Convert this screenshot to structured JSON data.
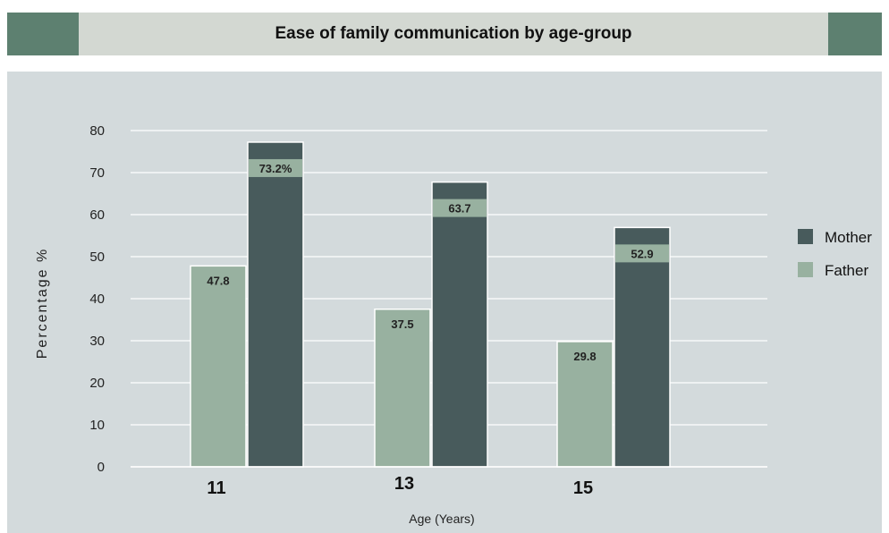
{
  "title": "Ease of family communication by age-group",
  "chart_data": {
    "type": "bar",
    "categories": [
      "11",
      "13",
      "15"
    ],
    "series": [
      {
        "name": "Father",
        "values": [
          47.8,
          37.5,
          29.8
        ],
        "labels": [
          "47.8",
          "37.5",
          "29.8"
        ],
        "color": "#98b1a0"
      },
      {
        "name": "Mother",
        "values": [
          73.2,
          63.7,
          52.9
        ],
        "labels": [
          "73.2%",
          "63.7",
          "52.9"
        ],
        "color": "#485b5c"
      }
    ],
    "xlabel": "Age (Years)",
    "ylabel": "Percentage %",
    "ylim": [
      0,
      80
    ],
    "yticks": [
      0,
      10,
      20,
      30,
      40,
      50,
      60,
      70,
      80
    ],
    "grid": true,
    "legend": "right",
    "label_box_color": "#98b1a0",
    "grid_color": "#ffffff"
  }
}
